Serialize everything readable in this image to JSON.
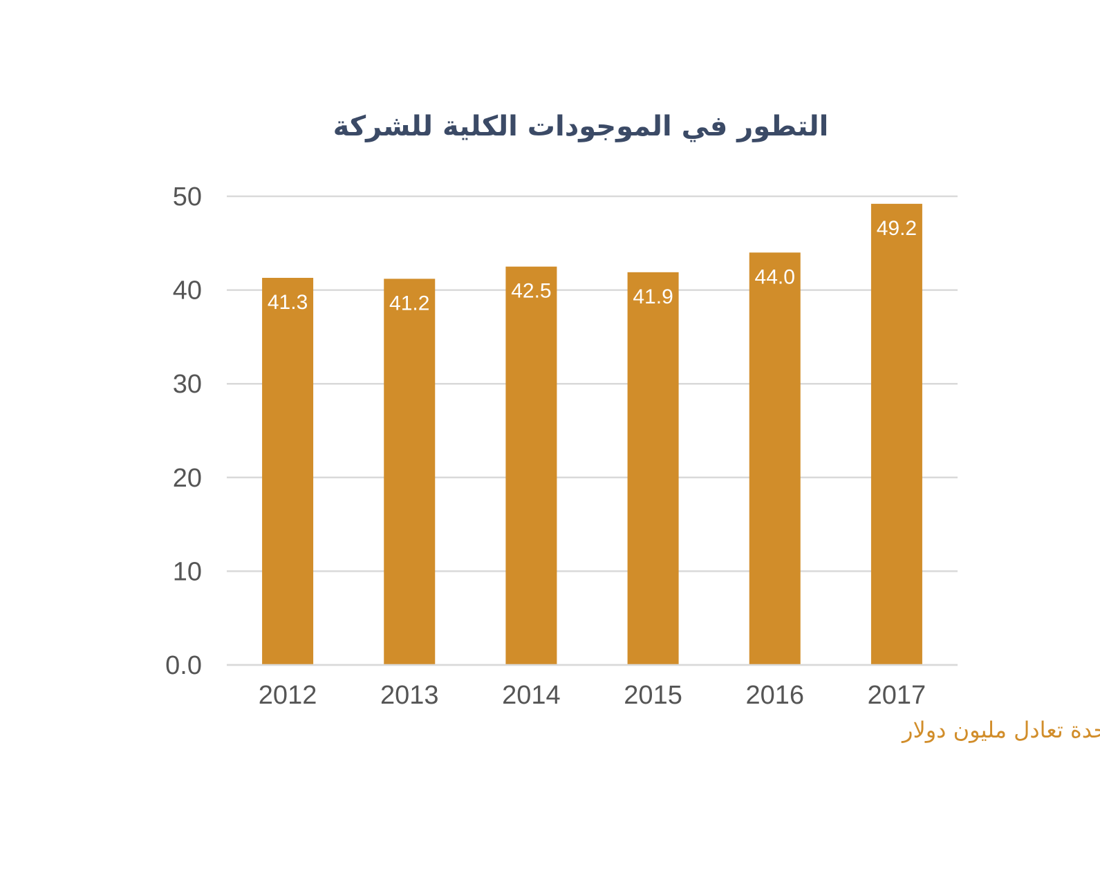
{
  "chart_data": {
    "type": "bar",
    "title": "التطور في الموجودات الكلية للشركة",
    "categories": [
      "2012",
      "2013",
      "2014",
      "2015",
      "2016",
      "2017"
    ],
    "values": [
      41.3,
      41.2,
      42.5,
      41.9,
      44.0,
      49.2
    ],
    "data_labels": [
      "41.3",
      "41.2",
      "42.5",
      "41.9",
      "44.0",
      "49.2"
    ],
    "y_ticks": [
      0,
      10,
      20,
      30,
      40,
      50
    ],
    "y_tick_labels": [
      "0.0",
      "10",
      "20",
      "30",
      "40",
      "50"
    ],
    "ylim": [
      0,
      50
    ],
    "xlabel": "",
    "ylabel": "",
    "grid": true,
    "legend": "none",
    "note": "- كل وحدة تعادل مليون دولار"
  },
  "colors": {
    "bar": "#d18d2a",
    "title": "#3b4a66",
    "tick": "#555555",
    "grid": "#d9d9d9",
    "data_label": "#ffffff",
    "note": "#d18d2a"
  }
}
